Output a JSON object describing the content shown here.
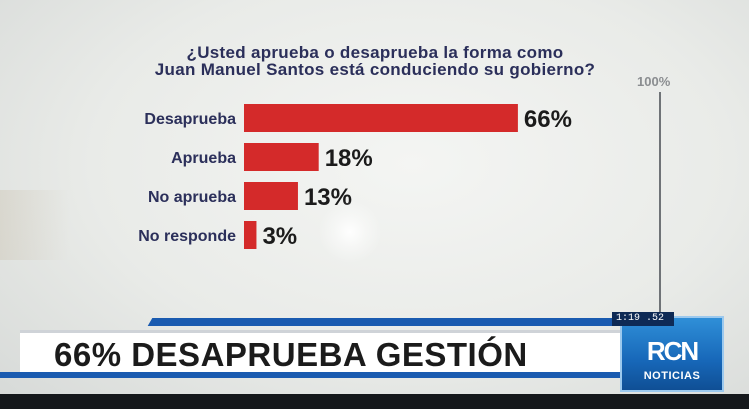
{
  "chart_data": {
    "type": "bar",
    "orientation": "horizontal",
    "title": "¿Usted aprueba o desaprueba la forma como Juan Manuel Santos está conduciendo su gobierno?",
    "title_lines": [
      "¿Usted aprueba o desaprueba la forma como",
      "Juan Manuel Santos está conduciendo su gobierno?"
    ],
    "categories": [
      "Desaprueba",
      "Aprueba",
      "No aprueba",
      "No responde"
    ],
    "values": [
      66,
      18,
      13,
      3
    ],
    "value_labels": [
      "66%",
      "18%",
      "13%",
      "3%"
    ],
    "xlim": [
      0,
      100
    ],
    "reference_label": "100%",
    "bar_color": "#d42a2a",
    "grid": false,
    "legend": "none"
  },
  "banner": {
    "headline": "66% DESAPRUEBA GESTIÓN",
    "clock": "1:19 .52",
    "logo_text": "NOTICIAS",
    "logo_icon": "rcn-logo-icon",
    "accent_color": "#1a5bb0"
  }
}
